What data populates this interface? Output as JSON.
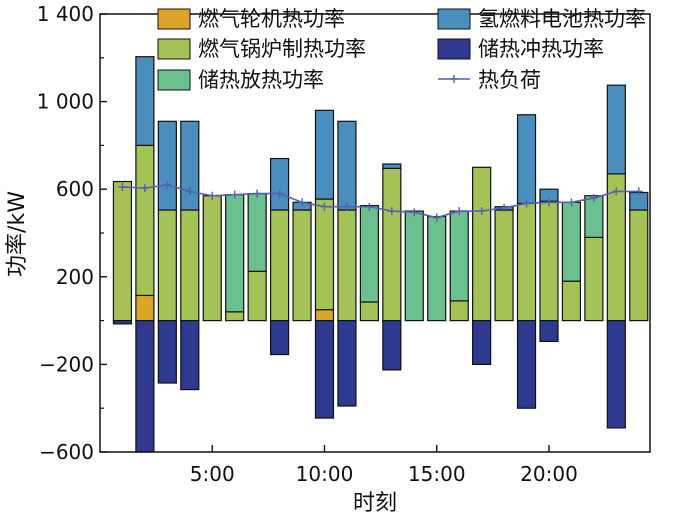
{
  "chart_data": {
    "type": "bar",
    "stacking": "stacked with positive and negative components",
    "xlabel": "时刻",
    "ylabel": "功率/kW",
    "ylim": [
      -600,
      1400
    ],
    "xlim": [
      0,
      24.5
    ],
    "yticks": [
      -600,
      -200,
      200,
      600,
      1000,
      1400
    ],
    "ytick_labels": [
      "−600",
      "−200",
      "200",
      "600",
      "1 000",
      "1 400"
    ],
    "xticks": [
      5,
      10,
      15,
      20
    ],
    "xtick_labels": [
      "5:00",
      "10:00",
      "15:00",
      "20:00"
    ],
    "legend_position": "top",
    "x": [
      1,
      2,
      3,
      4,
      5,
      6,
      7,
      8,
      9,
      10,
      11,
      12,
      13,
      14,
      15,
      16,
      17,
      18,
      19,
      20,
      21,
      22,
      23,
      24
    ],
    "series": [
      {
        "name": "燃气轮机热功率",
        "color": "#d9a52b",
        "values": [
          0,
          115,
          0,
          0,
          0,
          0,
          0,
          0,
          0,
          50,
          0,
          0,
          0,
          0,
          0,
          0,
          0,
          0,
          0,
          0,
          0,
          0,
          0,
          0
        ]
      },
      {
        "name": "燃气锅炉制热功率",
        "color": "#a5c256",
        "values": [
          635,
          685,
          505,
          505,
          570,
          40,
          225,
          505,
          505,
          505,
          505,
          85,
          695,
          0,
          0,
          90,
          700,
          505,
          535,
          545,
          180,
          380,
          670,
          505
        ]
      },
      {
        "name": "储热放热功率",
        "color": "#6cbf8e",
        "values": [
          0,
          0,
          0,
          0,
          0,
          535,
          355,
          0,
          0,
          0,
          0,
          440,
          0,
          500,
          475,
          410,
          0,
          0,
          0,
          0,
          360,
          190,
          0,
          0
        ]
      },
      {
        "name": "氢燃料电池热功率",
        "color": "#4a8ebe",
        "values": [
          0,
          405,
          405,
          405,
          0,
          0,
          0,
          235,
          35,
          405,
          405,
          0,
          20,
          0,
          0,
          0,
          0,
          15,
          405,
          55,
          0,
          0,
          405,
          80
        ]
      },
      {
        "name": "储热冲热功率",
        "color": "#2e3a8f",
        "values": [
          -15,
          -600,
          -285,
          -315,
          0,
          0,
          0,
          -155,
          0,
          -445,
          -390,
          0,
          -225,
          0,
          0,
          0,
          -200,
          0,
          -400,
          -95,
          0,
          0,
          -490,
          0
        ]
      },
      {
        "name": "热负荷",
        "color": "#5560b0",
        "type": "line",
        "values": [
          610,
          605,
          620,
          590,
          570,
          575,
          580,
          580,
          540,
          520,
          520,
          520,
          500,
          495,
          470,
          500,
          500,
          515,
          535,
          540,
          540,
          560,
          590,
          590
        ]
      }
    ]
  }
}
